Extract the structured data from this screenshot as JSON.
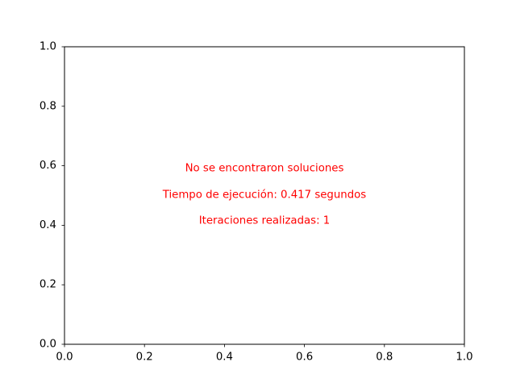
{
  "chart_data": {
    "type": "scatter",
    "series": [],
    "xlim": [
      0.0,
      1.0
    ],
    "ylim": [
      0.0,
      1.0
    ],
    "x_ticks": [
      "0.0",
      "0.2",
      "0.4",
      "0.6",
      "0.8",
      "1.0"
    ],
    "y_ticks": [
      "0.0",
      "0.2",
      "0.4",
      "0.6",
      "0.8",
      "1.0"
    ],
    "grid": false,
    "annotations": [
      "No se encontraron soluciones",
      "Tiempo de ejecución: 0.417 segundos",
      "Iteraciones realizadas: 1"
    ],
    "annotation_color": "#ff0000",
    "axis_color": "#000000"
  }
}
